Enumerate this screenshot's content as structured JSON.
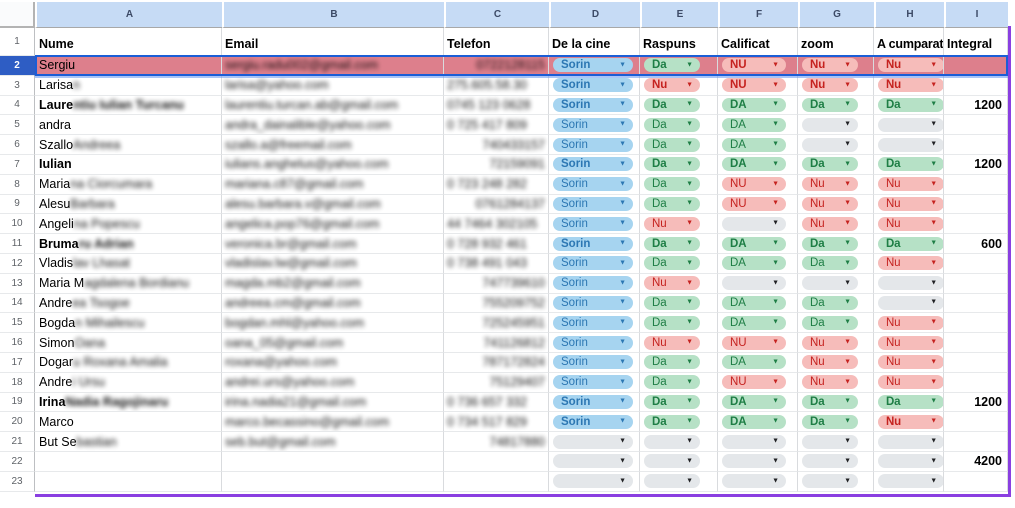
{
  "sheet": {
    "column_letters": [
      "A",
      "B",
      "C",
      "D",
      "E",
      "F",
      "G",
      "H",
      "I"
    ],
    "header_row_number": "1",
    "headers": [
      {
        "label": "Nume"
      },
      {
        "label": "Email"
      },
      {
        "label": "Telefon"
      },
      {
        "label": "De la cine"
      },
      {
        "label": "Raspuns"
      },
      {
        "label": "Calificat"
      },
      {
        "label": "zoom"
      },
      {
        "label": "A cumparat"
      },
      {
        "label": "Integral"
      }
    ],
    "dropdown_options_seen": [
      "Sorin",
      "Da",
      "Nu",
      "DA",
      "NU"
    ],
    "colors": {
      "selected_row_highlight": "#dd7f8c",
      "selection_border_blue": "#1b5ed6",
      "collaborator_range_border_purple": "#8a3fe1",
      "chip_blue_bg": "#a6d4f0",
      "chip_blue_text": "#2c77b3",
      "chip_green_bg": "#b6e1c6",
      "chip_green_text": "#1e7e45",
      "chip_red_bg": "#f6bcba",
      "chip_red_text": "#c5221f",
      "chip_empty_bg": "#e4e7ea",
      "column_header_bg": "#c6dbf5"
    },
    "rows": [
      {
        "n": "2",
        "selected": true,
        "pill_bold": true,
        "name": "Sergiu",
        "name_blurred_part": "",
        "bold": false,
        "email_blurred": "sergiu.radu002@gmail.com",
        "phone_blurred": "0722128115",
        "phone_align": "right",
        "d": "Sorin",
        "e": "Da",
        "f": "NU",
        "g": "Nu",
        "h": "Nu",
        "i": ""
      },
      {
        "n": "3",
        "pill_bold": true,
        "name": "Larisa",
        "name_blurred_part": "n",
        "email_blurred": "larisa@yahoo.com",
        "phone_blurred": "275.605.58.30",
        "phone_align": "left",
        "d": "Sorin",
        "e": "Nu",
        "f": "NU",
        "g": "Nu",
        "h": "Nu",
        "i": ""
      },
      {
        "n": "4",
        "pill_bold": true,
        "bold": true,
        "name": "Laure",
        "name_blurred_part": "ntiu Iulian Turcanu",
        "email_blurred": "laurentiu.turcan.ab@gmail.com",
        "phone_blurred": "0745 123 0628",
        "phone_align": "left",
        "d": "Sorin",
        "e": "Da",
        "f": "DA",
        "g": "Da",
        "h": "Da",
        "i": "1200"
      },
      {
        "n": "5",
        "name": "andra",
        "name_blurred_part": "",
        "email_blurred": "andra_dainalible@yahoo.com",
        "phone_blurred": "0 725 417 809",
        "phone_align": "left",
        "d": "Sorin",
        "e": "Da",
        "f": "DA",
        "g": "",
        "h": "",
        "i": ""
      },
      {
        "n": "6",
        "name": "Szallo",
        "name_blurred_part": " Andreea",
        "email_blurred": "szallo.a@freemail.com",
        "phone_blurred": "740433157",
        "phone_align": "right",
        "d": "Sorin",
        "e": "Da",
        "f": "DA",
        "g": "",
        "h": "",
        "i": ""
      },
      {
        "n": "7",
        "pill_bold": true,
        "bold": true,
        "name": "Iulian",
        "name_blurred_part": "",
        "email_blurred": "iulians.anghelus@yahoo.com",
        "phone_blurred": "72159091",
        "phone_align": "right",
        "d": "Sorin",
        "e": "Da",
        "f": "DA",
        "g": "Da",
        "h": "Da",
        "i": "1200"
      },
      {
        "n": "8",
        "name": "Maria",
        "name_blurred_part": "na Ciorcumara",
        "email_blurred": "mariana.c87@gmail.com",
        "phone_blurred": "0 723 248 282",
        "phone_align": "left",
        "d": "Sorin",
        "e": "Da",
        "f": "NU",
        "g": "Nu",
        "h": "Nu",
        "i": ""
      },
      {
        "n": "9",
        "name": "Alesu",
        "name_blurred_part": " Barbara",
        "email_blurred": "alesu.barbara.v@gmail.com",
        "phone_blurred": "0761284137",
        "phone_align": "right",
        "d": "Sorin",
        "e": "Da",
        "f": "NU",
        "g": "Nu",
        "h": "Nu",
        "i": ""
      },
      {
        "n": "10",
        "name": "Angeli",
        "name_blurred_part": "na Popescu",
        "email_blurred": "angelica.pop76@gmail.com",
        "phone_blurred": "44 7464 302105",
        "phone_align": "left",
        "d": "Sorin",
        "e": "Nu",
        "f": "",
        "g": "Nu",
        "h": "Nu",
        "i": ""
      },
      {
        "n": "11",
        "pill_bold": true,
        "bold": true,
        "name": "Bruma",
        "name_blurred_part": "ru Adrian",
        "email_blurred": "veronica.br@gmail.com",
        "phone_blurred": "0 728 932 461",
        "phone_align": "left",
        "d": "Sorin",
        "e": "Da",
        "f": "DA",
        "g": "Da",
        "h": "Da",
        "i": "600"
      },
      {
        "n": "12",
        "name": "Vladis",
        "name_blurred_part": "lav Lhasat",
        "email_blurred": "vladislav.lw@gmail.com",
        "phone_blurred": "0 738 491 043",
        "phone_align": "left",
        "d": "Sorin",
        "e": "Da",
        "f": "DA",
        "g": "Da",
        "h": "Nu",
        "i": ""
      },
      {
        "n": "13",
        "name": "Maria M",
        "name_blurred_part": "agdalena Bordianu",
        "email_blurred": "magda.mb2@gmail.com",
        "phone_blurred": "747739610",
        "phone_align": "right",
        "d": "Sorin",
        "e": "Nu",
        "f": "",
        "g": "",
        "h": "",
        "i": ""
      },
      {
        "n": "14",
        "name": "Andre",
        "name_blurred_part": "ea Tsogoe",
        "email_blurred": "andreea.cm@gmail.com",
        "phone_blurred": "755209752",
        "phone_align": "right",
        "d": "Sorin",
        "e": "Da",
        "f": "DA",
        "g": "Da",
        "h": "",
        "i": ""
      },
      {
        "n": "15",
        "name": "Bogda",
        "name_blurred_part": "n Mihailescu",
        "email_blurred": "bogdan.mhl@yahoo.com",
        "phone_blurred": "725245951",
        "phone_align": "right",
        "d": "Sorin",
        "e": "Da",
        "f": "DA",
        "g": "Da",
        "h": "Nu",
        "i": ""
      },
      {
        "n": "16",
        "name": "Simon",
        "name_blurred_part": " Oana",
        "email_blurred": "oana_05@gmail.com",
        "phone_blurred": "741126812",
        "phone_align": "right",
        "d": "Sorin",
        "e": "Nu",
        "f": "NU",
        "g": "Nu",
        "h": "Nu",
        "i": ""
      },
      {
        "n": "17",
        "name": "Dogar",
        "name_blurred_part": "u Roxana Amalia",
        "email_blurred": "roxana@yahoo.com",
        "phone_blurred": "787172824",
        "phone_align": "right",
        "d": "Sorin",
        "e": "Da",
        "f": "DA",
        "g": "Nu",
        "h": "Nu",
        "i": ""
      },
      {
        "n": "18",
        "name": "Andre",
        "name_blurred_part": "i Ursu",
        "email_blurred": "andrei.urs@yahoo.com",
        "phone_blurred": "75129407",
        "phone_align": "right",
        "d": "Sorin",
        "e": "Da",
        "f": "NU",
        "g": "Nu",
        "h": "Nu",
        "i": ""
      },
      {
        "n": "19",
        "pill_bold": true,
        "bold": true,
        "name": "Irina",
        "name_blurred_part": " Nadia Ragojinaru",
        "email_blurred": "irina.nadia21@gmail.com",
        "phone_blurred": "0 736 657 332",
        "phone_align": "left",
        "d": "Sorin",
        "e": "Da",
        "f": "DA",
        "g": "Da",
        "h": "Da",
        "i": "1200"
      },
      {
        "n": "20",
        "pill_bold": true,
        "name": "Marco",
        "name_blurred_part": "",
        "email_blurred": "marco.becassino@gmail.com",
        "phone_blurred": "0 734 517 829",
        "phone_align": "left",
        "d": "Sorin",
        "e": "Da",
        "f": "DA",
        "g": "Da",
        "h": "Nu",
        "i": ""
      },
      {
        "n": "21",
        "name": "But Se",
        "name_blurred_part": "bastian",
        "email_blurred": "seb.but@gmail.com",
        "phone_blurred": "74817880",
        "phone_align": "right",
        "d": "",
        "e": "",
        "f": "",
        "g": "",
        "h": "",
        "i": ""
      },
      {
        "n": "22",
        "name": "",
        "name_blurred_part": "",
        "email_blurred": "",
        "phone_blurred": "",
        "phone_align": "left",
        "d": "",
        "e": "",
        "f": "",
        "g": "",
        "h": "",
        "i": "4200"
      },
      {
        "n": "23",
        "name": "",
        "name_blurred_part": "",
        "email_blurred": "",
        "phone_blurred": "",
        "phone_align": "left",
        "d": "",
        "e": "",
        "f": "",
        "g": "",
        "h": "",
        "i": ""
      }
    ]
  }
}
